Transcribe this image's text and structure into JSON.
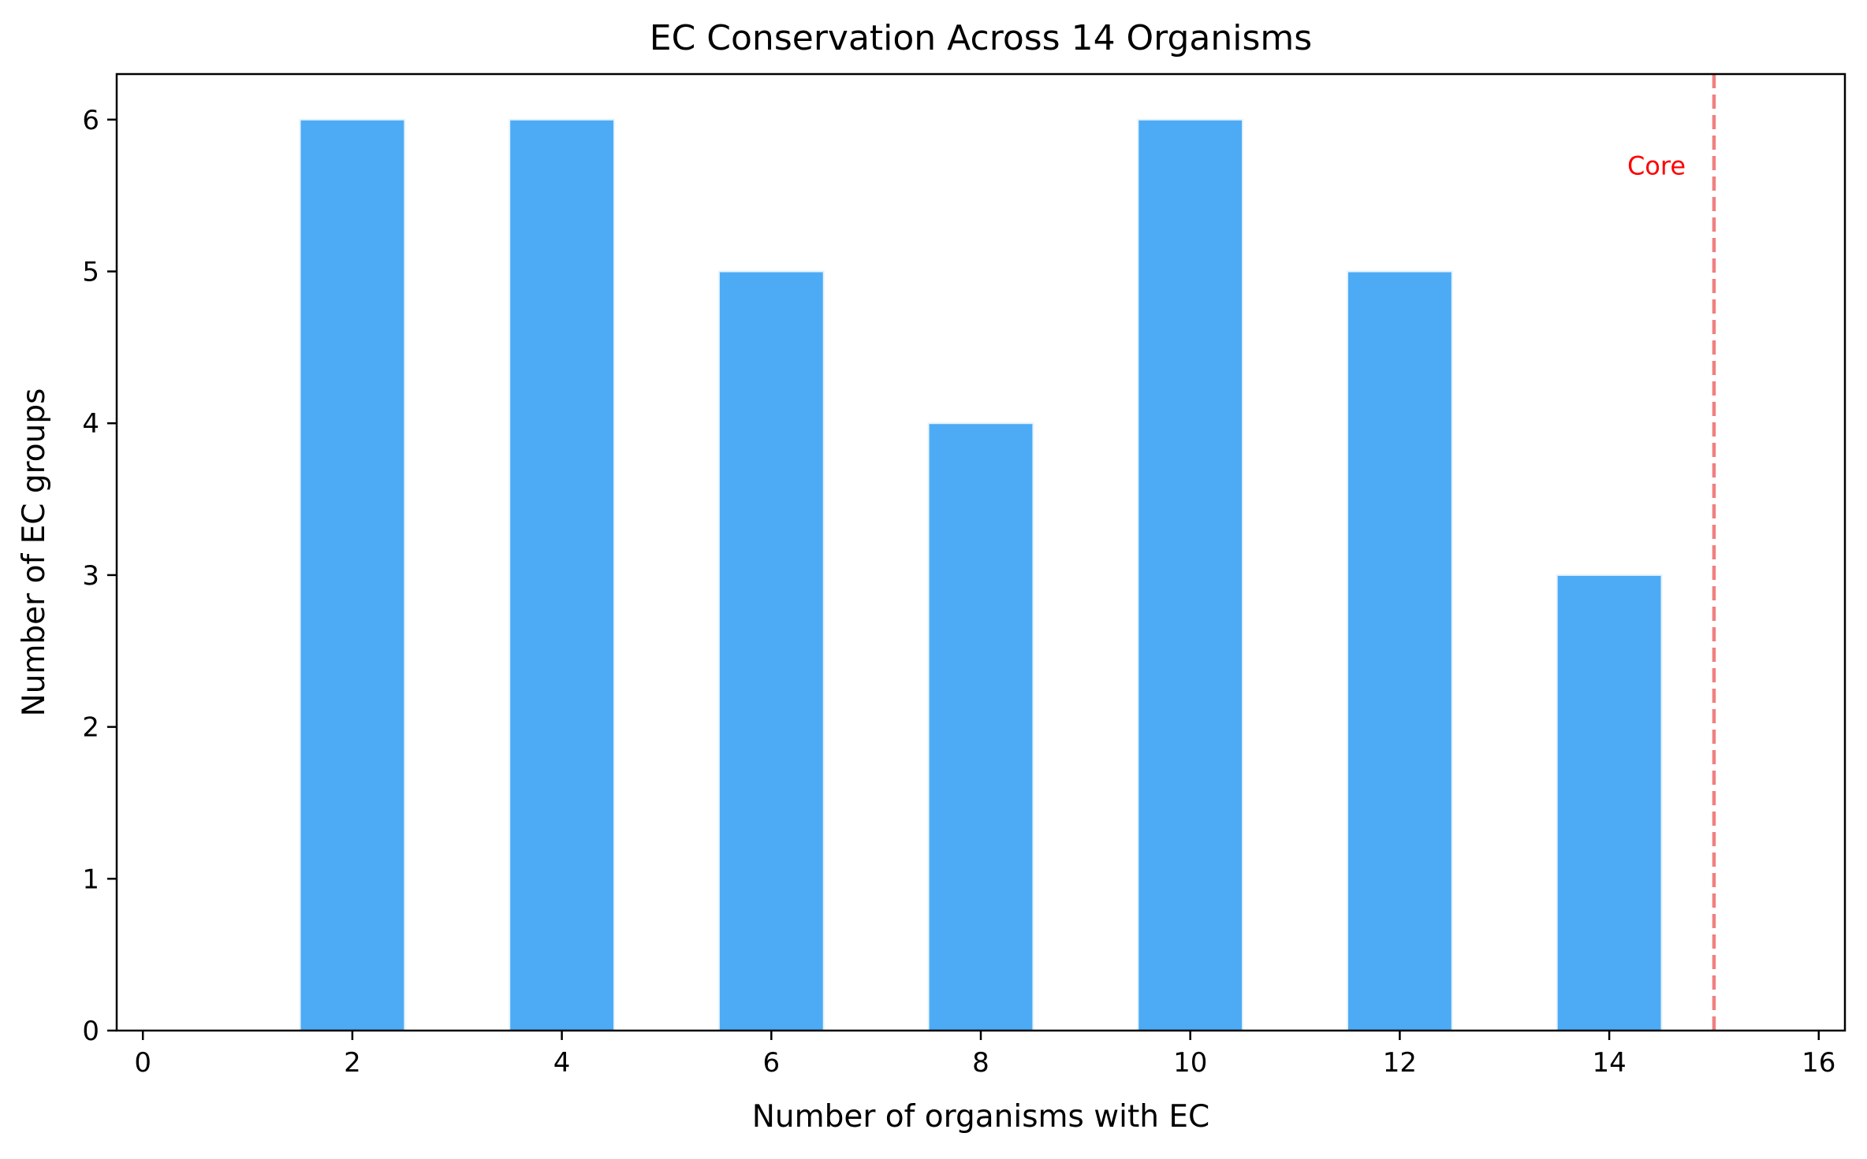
{
  "chart_data": {
    "type": "bar",
    "title": "EC Conservation Across 14 Organisms",
    "xlabel": "Number of organisms with EC",
    "ylabel": "Number of EC groups",
    "xlim": [
      -0.25,
      16.25
    ],
    "ylim": [
      0,
      6.3
    ],
    "x_ticks": [
      0,
      2,
      4,
      6,
      8,
      10,
      12,
      14,
      16
    ],
    "y_ticks": [
      0,
      1,
      2,
      3,
      4,
      5,
      6
    ],
    "bar_width": 1.0,
    "x": [
      2,
      4,
      6,
      8,
      10,
      12,
      14
    ],
    "values": [
      6,
      6,
      5,
      4,
      6,
      5,
      3
    ],
    "bar_color": "#4dabf5",
    "bar_edge_color": "#e6f3fd",
    "grid": false,
    "reference_line": {
      "x": 15,
      "color": "#f08080",
      "style": "dashed",
      "label": "Core",
      "label_color": "#ff0000",
      "label_y": 5.7
    }
  }
}
